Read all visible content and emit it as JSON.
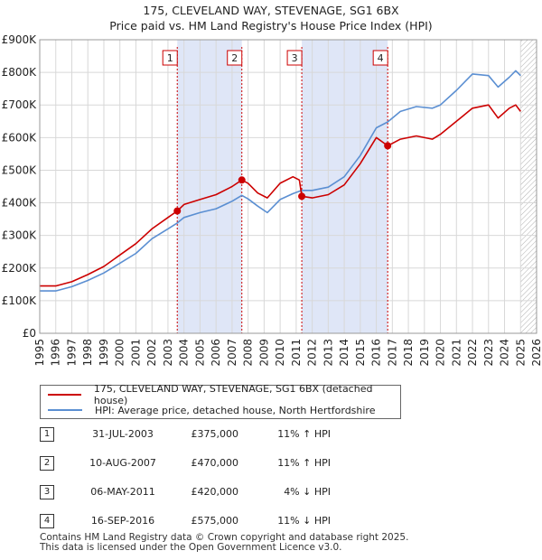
{
  "chart_data": {
    "type": "line",
    "title": "175, CLEVELAND WAY, STEVENAGE, SG1 6BX",
    "subtitle": "Price paid vs. HM Land Registry's House Price Index (HPI)",
    "xlabel": "",
    "ylabel": "",
    "xlim": [
      1995,
      2026
    ],
    "ylim": [
      0,
      900000
    ],
    "grid": true,
    "x_ticks": [
      "1995",
      "1996",
      "1997",
      "1998",
      "1999",
      "2000",
      "2001",
      "2002",
      "2003",
      "2004",
      "2005",
      "2006",
      "2007",
      "2008",
      "2009",
      "2010",
      "2011",
      "2012",
      "2013",
      "2014",
      "2015",
      "2016",
      "2017",
      "2018",
      "2019",
      "2020",
      "2021",
      "2022",
      "2023",
      "2024",
      "2025",
      "2026"
    ],
    "y_ticks": [
      {
        "value": 0,
        "label": "£0"
      },
      {
        "value": 100000,
        "label": "£100K"
      },
      {
        "value": 200000,
        "label": "£200K"
      },
      {
        "value": 300000,
        "label": "£300K"
      },
      {
        "value": 400000,
        "label": "£400K"
      },
      {
        "value": 500000,
        "label": "£500K"
      },
      {
        "value": 600000,
        "label": "£600K"
      },
      {
        "value": 700000,
        "label": "£700K"
      },
      {
        "value": 800000,
        "label": "£800K"
      },
      {
        "value": 900000,
        "label": "£900K"
      }
    ],
    "shaded_periods": [
      [
        2003.58,
        2007.61
      ],
      [
        2011.35,
        2016.71
      ]
    ],
    "future_hatch_from": 2025.0,
    "series": [
      {
        "name": "175, CLEVELAND WAY, STEVENAGE, SG1 6BX (detached house)",
        "color": "#cc0000",
        "points": [
          [
            1995.0,
            145000
          ],
          [
            1996.0,
            145000
          ],
          [
            1997.0,
            158000
          ],
          [
            1998.0,
            180000
          ],
          [
            1999.0,
            205000
          ],
          [
            2000.0,
            240000
          ],
          [
            2001.0,
            275000
          ],
          [
            2002.0,
            320000
          ],
          [
            2003.0,
            355000
          ],
          [
            2003.58,
            375000
          ],
          [
            2004.0,
            395000
          ],
          [
            2005.0,
            410000
          ],
          [
            2006.0,
            425000
          ],
          [
            2007.0,
            450000
          ],
          [
            2007.61,
            470000
          ],
          [
            2008.0,
            460000
          ],
          [
            2008.6,
            430000
          ],
          [
            2009.2,
            415000
          ],
          [
            2010.0,
            460000
          ],
          [
            2010.8,
            480000
          ],
          [
            2011.2,
            470000
          ],
          [
            2011.35,
            420000
          ],
          [
            2012.0,
            415000
          ],
          [
            2013.0,
            425000
          ],
          [
            2014.0,
            455000
          ],
          [
            2015.0,
            520000
          ],
          [
            2016.0,
            600000
          ],
          [
            2016.71,
            575000
          ],
          [
            2017.5,
            595000
          ],
          [
            2018.5,
            605000
          ],
          [
            2019.5,
            595000
          ],
          [
            2020.0,
            610000
          ],
          [
            2021.0,
            650000
          ],
          [
            2022.0,
            690000
          ],
          [
            2023.0,
            700000
          ],
          [
            2023.6,
            660000
          ],
          [
            2024.3,
            690000
          ],
          [
            2024.7,
            700000
          ],
          [
            2025.0,
            680000
          ]
        ]
      },
      {
        "name": "HPI: Average price, detached house, North Hertfordshire",
        "color": "#5b8fd2",
        "points": [
          [
            1995.0,
            130000
          ],
          [
            1996.0,
            130000
          ],
          [
            1997.0,
            143000
          ],
          [
            1998.0,
            162000
          ],
          [
            1999.0,
            185000
          ],
          [
            2000.0,
            215000
          ],
          [
            2001.0,
            245000
          ],
          [
            2002.0,
            290000
          ],
          [
            2003.0,
            320000
          ],
          [
            2003.58,
            338000
          ],
          [
            2004.0,
            355000
          ],
          [
            2005.0,
            370000
          ],
          [
            2006.0,
            382000
          ],
          [
            2007.0,
            405000
          ],
          [
            2007.61,
            423000
          ],
          [
            2008.0,
            412000
          ],
          [
            2008.6,
            390000
          ],
          [
            2009.2,
            370000
          ],
          [
            2010.0,
            410000
          ],
          [
            2010.8,
            428000
          ],
          [
            2011.35,
            438000
          ],
          [
            2012.0,
            438000
          ],
          [
            2013.0,
            448000
          ],
          [
            2014.0,
            480000
          ],
          [
            2015.0,
            545000
          ],
          [
            2016.0,
            630000
          ],
          [
            2016.71,
            648000
          ],
          [
            2017.5,
            680000
          ],
          [
            2018.5,
            695000
          ],
          [
            2019.5,
            690000
          ],
          [
            2020.0,
            700000
          ],
          [
            2021.0,
            745000
          ],
          [
            2022.0,
            795000
          ],
          [
            2023.0,
            790000
          ],
          [
            2023.6,
            755000
          ],
          [
            2024.3,
            785000
          ],
          [
            2024.7,
            805000
          ],
          [
            2025.0,
            790000
          ]
        ]
      }
    ],
    "sales": [
      {
        "num": "1",
        "x": 2003.58,
        "price": 375000,
        "date": "31-JUL-2003",
        "price_label": "£375,000",
        "hpi_label": "11% ↑ HPI"
      },
      {
        "num": "2",
        "x": 2007.61,
        "price": 470000,
        "date": "10-AUG-2007",
        "price_label": "£470,000",
        "hpi_label": "11% ↑ HPI"
      },
      {
        "num": "3",
        "x": 2011.35,
        "price": 420000,
        "date": "06-MAY-2011",
        "price_label": "£420,000",
        "hpi_label": "4% ↓ HPI"
      },
      {
        "num": "4",
        "x": 2016.71,
        "price": 575000,
        "date": "16-SEP-2016",
        "price_label": "£575,000",
        "hpi_label": "11% ↓ HPI"
      }
    ]
  },
  "footer": {
    "line1": "Contains HM Land Registry data © Crown copyright and database right 2025.",
    "line2": "This data is licensed under the Open Government Licence v3.0."
  }
}
